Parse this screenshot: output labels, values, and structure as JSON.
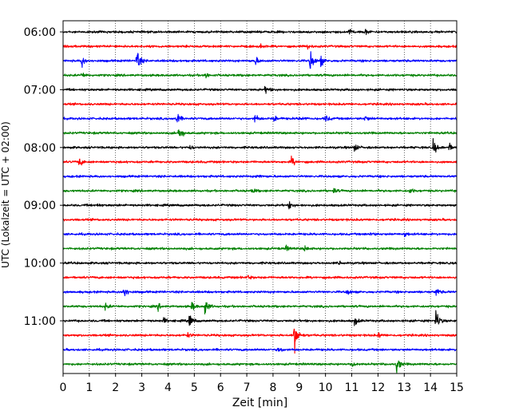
{
  "chart_data": {
    "type": "line",
    "title": "",
    "xlabel": "Zeit  [min]",
    "ylabel": "UTC (Lokalzeit = UTC + 02:00)",
    "xlim": [
      0,
      15
    ],
    "x_ticks": [
      "0",
      "1",
      "2",
      "3",
      "4",
      "5",
      "6",
      "7",
      "8",
      "9",
      "10",
      "11",
      "12",
      "13",
      "14",
      "15"
    ],
    "y_ticks": [
      "06:00",
      "07:00",
      "08:00",
      "09:00",
      "10:00",
      "11:00"
    ],
    "trace_interval_min": 15,
    "first_trace": "06:00",
    "last_trace": "11:45",
    "grid_x": true,
    "colors": [
      "#000000",
      "#ff0000",
      "#0000ff",
      "#008000"
    ],
    "traces": [
      {
        "time": "06:00",
        "color": "#000000",
        "events": [
          {
            "t": 10.9,
            "amp": 5
          },
          {
            "t": 11.5,
            "amp": 3
          }
        ]
      },
      {
        "time": "06:15",
        "color": "#ff0000",
        "events": [
          {
            "t": 7.5,
            "amp": 3
          },
          {
            "t": 9.3,
            "amp": 3
          }
        ]
      },
      {
        "time": "06:30",
        "color": "#0000ff",
        "events": [
          {
            "t": 0.7,
            "amp": 7
          },
          {
            "t": 2.8,
            "amp": 15
          },
          {
            "t": 7.3,
            "amp": 6
          },
          {
            "t": 9.4,
            "amp": 16
          },
          {
            "t": 9.8,
            "amp": 7
          }
        ]
      },
      {
        "time": "06:45",
        "color": "#008000",
        "events": [
          {
            "t": 0.7,
            "amp": 4
          },
          {
            "t": 5.4,
            "amp": 4
          }
        ]
      },
      {
        "time": "07:00",
        "color": "#000000",
        "events": [
          {
            "t": 7.7,
            "amp": 5
          }
        ]
      },
      {
        "time": "07:15",
        "color": "#ff0000",
        "events": []
      },
      {
        "time": "07:30",
        "color": "#0000ff",
        "events": [
          {
            "t": 4.3,
            "amp": 9
          },
          {
            "t": 7.3,
            "amp": 5
          },
          {
            "t": 8.0,
            "amp": 5
          },
          {
            "t": 9.0,
            "amp": 4
          },
          {
            "t": 10.0,
            "amp": 5
          },
          {
            "t": 11.5,
            "amp": 4
          }
        ]
      },
      {
        "time": "07:45",
        "color": "#008000",
        "events": [
          {
            "t": 4.4,
            "amp": 12
          }
        ]
      },
      {
        "time": "08:00",
        "color": "#000000",
        "events": [
          {
            "t": 4.8,
            "amp": 3
          },
          {
            "t": 11.1,
            "amp": 5
          },
          {
            "t": 14.1,
            "amp": 10
          },
          {
            "t": 14.7,
            "amp": 5
          }
        ]
      },
      {
        "time": "08:15",
        "color": "#ff0000",
        "events": [
          {
            "t": 0.6,
            "amp": 6
          },
          {
            "t": 8.7,
            "amp": 6
          }
        ]
      },
      {
        "time": "08:30",
        "color": "#0000ff",
        "events": [
          {
            "t": 7.4,
            "amp": 3
          }
        ]
      },
      {
        "time": "08:45",
        "color": "#008000",
        "events": [
          {
            "t": 7.2,
            "amp": 3
          },
          {
            "t": 10.3,
            "amp": 3
          },
          {
            "t": 13.2,
            "amp": 3
          }
        ]
      },
      {
        "time": "09:00",
        "color": "#000000",
        "events": [
          {
            "t": 1.2,
            "amp": 3
          },
          {
            "t": 8.6,
            "amp": 4
          }
        ]
      },
      {
        "time": "09:15",
        "color": "#ff0000",
        "events": []
      },
      {
        "time": "09:30",
        "color": "#0000ff",
        "events": [
          {
            "t": 11.7,
            "amp": 3
          },
          {
            "t": 13.0,
            "amp": 3
          }
        ]
      },
      {
        "time": "09:45",
        "color": "#008000",
        "events": [
          {
            "t": 8.5,
            "amp": 3
          },
          {
            "t": 9.2,
            "amp": 3
          }
        ]
      },
      {
        "time": "10:00",
        "color": "#000000",
        "events": [
          {
            "t": 10.5,
            "amp": 3
          }
        ]
      },
      {
        "time": "10:15",
        "color": "#ff0000",
        "events": [
          {
            "t": 7.0,
            "amp": 3
          }
        ]
      },
      {
        "time": "10:30",
        "color": "#0000ff",
        "events": [
          {
            "t": 2.3,
            "amp": 9
          },
          {
            "t": 10.8,
            "amp": 4
          },
          {
            "t": 14.2,
            "amp": 5
          }
        ]
      },
      {
        "time": "10:45",
        "color": "#008000",
        "events": [
          {
            "t": 1.6,
            "amp": 4
          },
          {
            "t": 3.6,
            "amp": 4
          },
          {
            "t": 4.9,
            "amp": 5
          },
          {
            "t": 5.4,
            "amp": 11
          }
        ]
      },
      {
        "time": "11:00",
        "color": "#000000",
        "events": [
          {
            "t": 3.8,
            "amp": 4
          },
          {
            "t": 4.8,
            "amp": 9
          },
          {
            "t": 11.1,
            "amp": 6
          },
          {
            "t": 14.2,
            "amp": 15
          }
        ]
      },
      {
        "time": "11:15",
        "color": "#ff0000",
        "events": [
          {
            "t": 4.7,
            "amp": 4
          },
          {
            "t": 8.8,
            "amp": 28
          },
          {
            "t": 12.0,
            "amp": 3
          }
        ]
      },
      {
        "time": "11:30",
        "color": "#0000ff",
        "events": [
          {
            "t": 8.2,
            "amp": 4
          }
        ]
      },
      {
        "time": "11:45",
        "color": "#008000",
        "events": [
          {
            "t": 11.0,
            "amp": 5
          },
          {
            "t": 12.7,
            "amp": 12
          }
        ]
      }
    ]
  }
}
